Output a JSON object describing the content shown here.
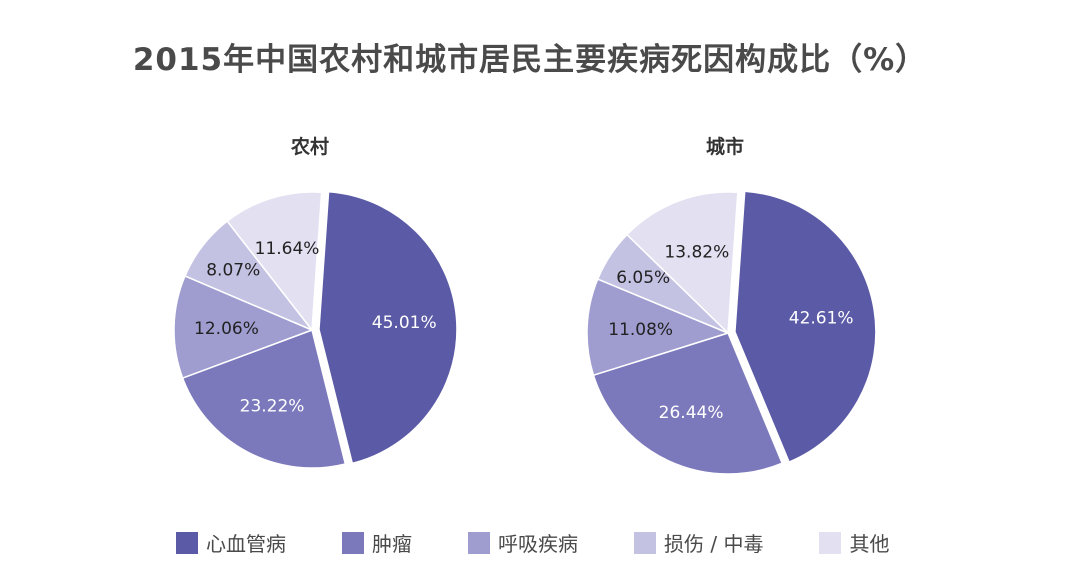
{
  "title": "2015年中国农村和城市居民主要疾病死因构成比（%）",
  "colors": [
    "#5b5aa6",
    "#7b79bb",
    "#9f9dd0",
    "#c4c2e3",
    "#e2e0f1"
  ],
  "legend": [
    "心血管病",
    "肿瘤",
    "呼吸疾病",
    "损伤 / 中毒",
    "其他"
  ],
  "chart_data": [
    {
      "type": "pie",
      "title": "农村",
      "labels": [
        "心血管病",
        "肿瘤",
        "呼吸疾病",
        "损伤 / 中毒",
        "其他"
      ],
      "values": [
        45.01,
        23.22,
        12.06,
        8.07,
        11.64
      ],
      "value_labels": [
        "45.01%",
        "23.22%",
        "12.06%",
        "8.07%",
        "11.64%"
      ]
    },
    {
      "type": "pie",
      "title": "城市",
      "labels": [
        "心血管病",
        "肿瘤",
        "呼吸疾病",
        "损伤 / 中毒",
        "其他"
      ],
      "values": [
        42.61,
        26.44,
        11.08,
        6.05,
        13.82
      ],
      "value_labels": [
        "42.61%",
        "26.44%",
        "11.08%",
        "6.05%",
        "13.82%"
      ]
    }
  ]
}
